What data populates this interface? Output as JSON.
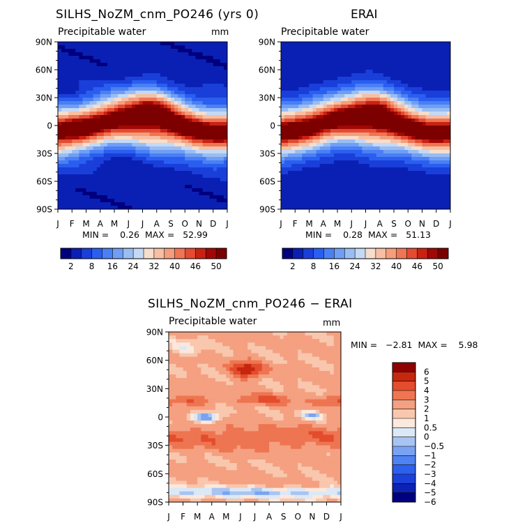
{
  "chart_data": [
    {
      "type": "heatmap",
      "title": "SILHS_NoZM_cnm_PO246 (yrs 0)",
      "subtitle": "Precipitable water",
      "units": "mm",
      "x_ticks": [
        "J",
        "F",
        "M",
        "A",
        "M",
        "J",
        "J",
        "A",
        "S",
        "O",
        "N",
        "D",
        "J"
      ],
      "y_ticks": [
        "90N",
        "60N",
        "30N",
        "0",
        "30S",
        "60S",
        "90S"
      ],
      "minmax_text": "MIN =    0.26  MAX =   52.99",
      "min": 0.26,
      "max": 52.99,
      "colorbar_labels": [
        "2",
        "8",
        "16",
        "24",
        "32",
        "40",
        "46",
        "50"
      ]
    },
    {
      "type": "heatmap",
      "title": "ERAI",
      "subtitle": "Precipitable water",
      "units": "",
      "x_ticks": [
        "J",
        "F",
        "M",
        "A",
        "M",
        "J",
        "J",
        "A",
        "S",
        "O",
        "N",
        "D",
        "J"
      ],
      "y_ticks": [
        "90N",
        "60N",
        "30N",
        "0",
        "30S",
        "60S",
        "90S"
      ],
      "minmax_text": "MIN =    0.28  MAX =   51.13",
      "min": 0.28,
      "max": 51.13,
      "colorbar_labels": [
        "2",
        "8",
        "16",
        "24",
        "32",
        "40",
        "46",
        "50"
      ]
    },
    {
      "type": "heatmap",
      "title": "SILHS_NoZM_cnm_PO246 − ERAI",
      "subtitle": "Precipitable water",
      "units": "mm",
      "x_ticks": [
        "J",
        "F",
        "M",
        "A",
        "M",
        "J",
        "J",
        "A",
        "S",
        "O",
        "N",
        "D",
        "J"
      ],
      "y_ticks": [
        "90N",
        "60N",
        "30N",
        "0",
        "30S",
        "60S",
        "90S"
      ],
      "minmax_text": "MIN =   −2.81  MAX =    5.98",
      "min": -2.81,
      "max": 5.98,
      "colorbar_labels": [
        "6",
        "5",
        "4",
        "3",
        "2",
        "1",
        "0.5",
        "0",
        "−0.5",
        "−1",
        "−2",
        "−3",
        "−4",
        "−5",
        "−6"
      ]
    }
  ],
  "colors": {
    "abs_scale": [
      "#00007f",
      "#0a20b4",
      "#1a3fd9",
      "#2a5ef0",
      "#4a7ff5",
      "#6f9ef5",
      "#9abdf2",
      "#c4d9f5",
      "#f6ddcc",
      "#f7bfa3",
      "#f59d7c",
      "#ef7554",
      "#e44b31",
      "#c92212",
      "#a20805",
      "#7c0000"
    ],
    "diff_scale": [
      "#00007f",
      "#0b22b4",
      "#1c41d8",
      "#2e60ee",
      "#4f82f3",
      "#79a3f2",
      "#a7c4f2",
      "#dbe8f6",
      "#fce8dc",
      "#f8c7ad",
      "#f4a081",
      "#ee7551",
      "#e34c2c",
      "#c6270f",
      "#8f0000"
    ]
  }
}
